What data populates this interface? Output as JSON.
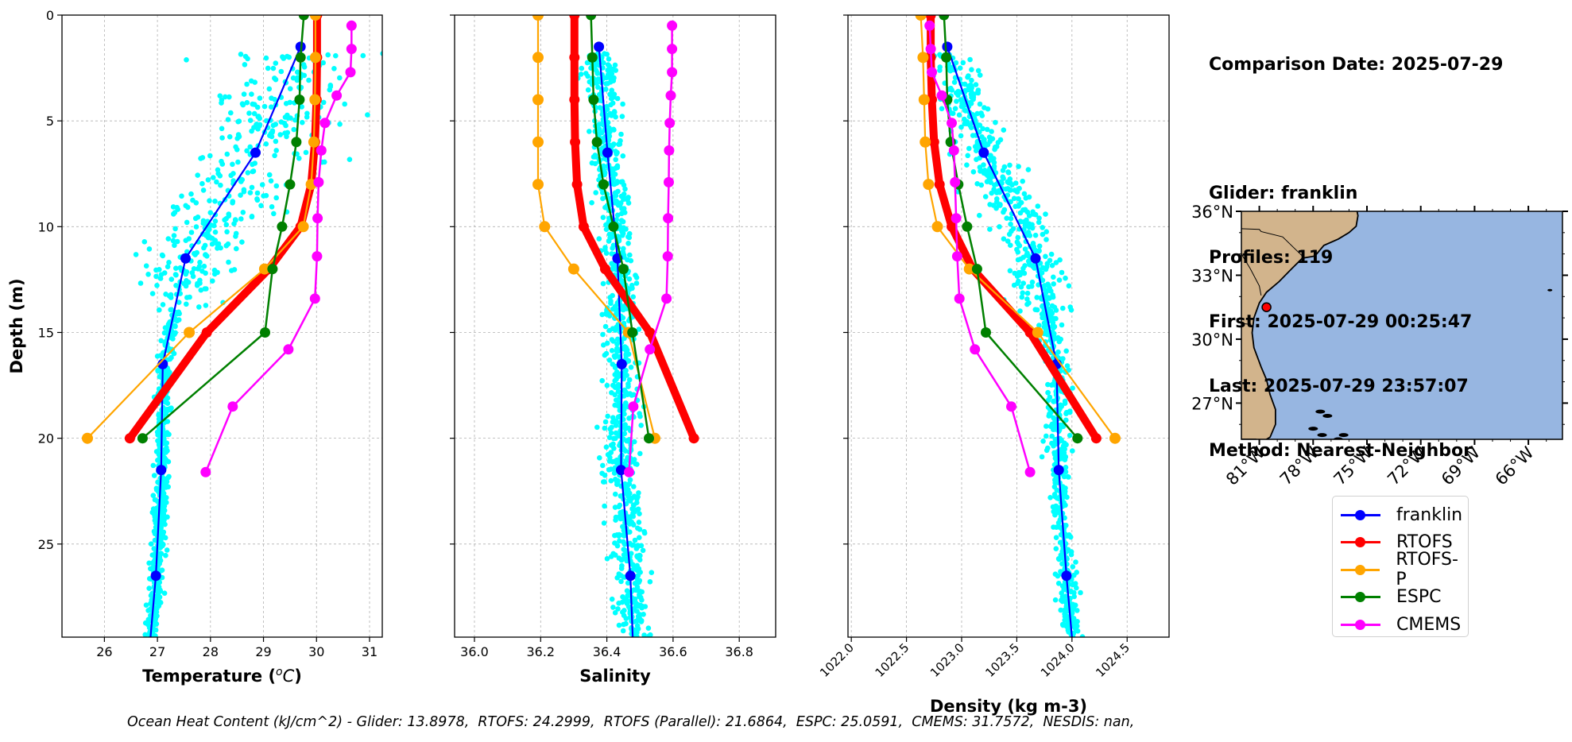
{
  "info": {
    "comparison_date": "Comparison Date: 2025-07-29",
    "glider": "Glider: franklin",
    "profiles": "Profiles: 119",
    "first": "First: 2025-07-29 00:25:47",
    "last": "Last: 2025-07-29 23:57:07",
    "method": "Method: Nearest-Neighbor"
  },
  "footer": {
    "text": "Ocean Heat Content (kJ/cm^2) - Glider: 13.8978,  RTOFS: 24.2999,  RTOFS (Parallel): 21.6864,  ESPC: 25.0591,  CMEMS: 31.7572,  NESDIS: nan,"
  },
  "legend": {
    "placement": "below-map",
    "items": [
      {
        "label": "franklin",
        "color": "#0000ff"
      },
      {
        "label": "RTOFS",
        "color": "#ff0000"
      },
      {
        "label": "RTOFS-P",
        "color": "#ffa500"
      },
      {
        "label": "ESPC",
        "color": "#008000"
      },
      {
        "label": "CMEMS",
        "color": "#ff00ff"
      }
    ]
  },
  "colors": {
    "glider_scatter": "#00ffff",
    "glider": "#0000ff",
    "rtofs": "#ff0000",
    "rtofs_p": "#ffa500",
    "espc": "#008000",
    "cmems": "#ff00ff",
    "land": "#d2b48c",
    "ocean": "#97b6e1",
    "grid": "#b0b0b0"
  },
  "map": {
    "lat_ticks": [
      "36°N",
      "33°N",
      "30°N",
      "27°N"
    ],
    "lat_values": [
      36,
      33,
      30,
      27
    ],
    "lon_ticks": [
      "81°W",
      "78°W",
      "75°W",
      "72°W",
      "69°W",
      "66°W"
    ],
    "lon_values": [
      -81,
      -78,
      -75,
      -72,
      -69,
      -66
    ],
    "lat_range": [
      25.3,
      36
    ],
    "lon_range": [
      -82,
      -64.1
    ],
    "glider_location": {
      "lon": -80.6,
      "lat": 31.5
    }
  },
  "chart_data": [
    {
      "type": "line",
      "title": "",
      "xlabel": "Temperature (",
      "xlabel_sup": "o",
      "xlabel_unit": "C)",
      "ylabel": "Depth (m)",
      "xlim": [
        25.2,
        31.24
      ],
      "ylim": [
        29.4,
        0
      ],
      "x_ticks": [
        26,
        27,
        28,
        29,
        30,
        31
      ],
      "x_tick_labels": [
        "26",
        "27",
        "28",
        "29",
        "30",
        "31"
      ],
      "y_ticks": [
        0,
        5,
        10,
        15,
        20,
        25
      ],
      "y_tick_labels": [
        "0",
        "5",
        "10",
        "15",
        "20",
        "25"
      ],
      "grid": true,
      "series": [
        {
          "name": "franklin",
          "depth": [
            1.5,
            6.5,
            11.5,
            16.5,
            21.5,
            26.5,
            29.4
          ],
          "values": [
            29.7,
            28.85,
            27.53,
            27.1,
            27.07,
            26.97,
            26.87
          ],
          "marker_count": 6
        },
        {
          "name": "RTOFS",
          "depth": [
            0,
            2,
            4,
            6,
            8,
            10,
            12,
            15,
            20
          ],
          "values": [
            30.01,
            30.01,
            30.0,
            29.97,
            29.9,
            29.7,
            29.1,
            27.93,
            26.48
          ]
        },
        {
          "name": "RTOFS-P",
          "depth": [
            0,
            2,
            4,
            6,
            8,
            10,
            12,
            15,
            20
          ],
          "values": [
            29.98,
            29.98,
            29.97,
            29.95,
            29.9,
            29.75,
            29.02,
            27.6,
            25.68
          ]
        },
        {
          "name": "ESPC",
          "depth": [
            0,
            2,
            4,
            6,
            8,
            10,
            12,
            15,
            20
          ],
          "values": [
            29.76,
            29.7,
            29.68,
            29.62,
            29.5,
            29.35,
            29.17,
            29.03,
            26.72
          ]
        },
        {
          "name": "CMEMS",
          "depth": [
            0.5,
            1.6,
            2.7,
            3.8,
            5.1,
            6.4,
            7.9,
            9.6,
            11.4,
            13.4,
            15.8,
            18.5,
            21.6
          ],
          "values": [
            30.66,
            30.66,
            30.64,
            30.38,
            30.16,
            30.09,
            30.04,
            30.02,
            30.01,
            29.97,
            29.47,
            28.42,
            27.91
          ]
        }
      ]
    },
    {
      "type": "line",
      "title": "",
      "xlabel": "Salinity",
      "ylabel": "",
      "xlim": [
        35.94,
        36.91
      ],
      "ylim": [
        29.4,
        0
      ],
      "x_ticks": [
        36.0,
        36.2,
        36.4,
        36.6,
        36.8
      ],
      "x_tick_labels": [
        "36.0",
        "36.2",
        "36.4",
        "36.6",
        "36.8"
      ],
      "y_ticks": [
        0,
        5,
        10,
        15,
        20,
        25
      ],
      "grid": true,
      "series": [
        {
          "name": "franklin",
          "depth": [
            1.5,
            6.5,
            11.5,
            16.5,
            21.5,
            26.5,
            29.4
          ],
          "values": [
            36.376,
            36.402,
            36.432,
            36.445,
            36.443,
            36.471,
            36.478
          ],
          "marker_count": 6
        },
        {
          "name": "RTOFS",
          "depth": [
            0,
            2,
            4,
            6,
            8,
            10,
            12,
            15,
            20
          ],
          "values": [
            36.302,
            36.302,
            36.302,
            36.304,
            36.31,
            36.33,
            36.395,
            36.53,
            36.663
          ]
        },
        {
          "name": "RTOFS-P",
          "depth": [
            0,
            2,
            4,
            6,
            8,
            10,
            12,
            15,
            20
          ],
          "values": [
            36.192,
            36.192,
            36.192,
            36.192,
            36.192,
            36.212,
            36.3,
            36.465,
            36.545
          ]
        },
        {
          "name": "ESPC",
          "depth": [
            0,
            2,
            4,
            6,
            8,
            10,
            12,
            15,
            20
          ],
          "values": [
            36.352,
            36.356,
            36.36,
            36.37,
            36.39,
            36.42,
            36.45,
            36.477,
            36.527
          ]
        },
        {
          "name": "CMEMS",
          "depth": [
            0.5,
            1.6,
            2.7,
            3.8,
            5.1,
            6.4,
            7.9,
            9.6,
            11.4,
            13.4,
            15.8,
            18.5,
            21.6
          ],
          "values": [
            36.597,
            36.597,
            36.597,
            36.593,
            36.59,
            36.588,
            36.587,
            36.585,
            36.584,
            36.58,
            36.53,
            36.48,
            36.467
          ]
        }
      ]
    },
    {
      "type": "line",
      "title": "",
      "xlabel": "Density (kg m-3)",
      "ylabel": "",
      "xlim": [
        1021.97,
        1024.88
      ],
      "ylim": [
        29.4,
        0
      ],
      "x_ticks": [
        1022.0,
        1022.5,
        1023.0,
        1023.5,
        1024.0,
        1024.5
      ],
      "x_tick_labels": [
        "1022.0",
        "1022.5",
        "1023.0",
        "1023.5",
        "1024.0",
        "1024.5"
      ],
      "y_ticks": [
        0,
        5,
        10,
        15,
        20,
        25
      ],
      "grid": true,
      "series": [
        {
          "name": "franklin",
          "depth": [
            1.5,
            6.5,
            11.5,
            16.5,
            21.5,
            26.5,
            29.4
          ],
          "values": [
            1022.87,
            1023.2,
            1023.67,
            1023.86,
            1023.88,
            1023.95,
            1024.0
          ],
          "marker_count": 6
        },
        {
          "name": "RTOFS",
          "depth": [
            0,
            2,
            4,
            6,
            8,
            10,
            12,
            15,
            20
          ],
          "values": [
            1022.72,
            1022.72,
            1022.73,
            1022.75,
            1022.8,
            1022.91,
            1023.1,
            1023.62,
            1024.22
          ]
        },
        {
          "name": "RTOFS-P",
          "depth": [
            0,
            2,
            4,
            6,
            8,
            10,
            12,
            15,
            20
          ],
          "values": [
            1022.63,
            1022.65,
            1022.66,
            1022.67,
            1022.7,
            1022.78,
            1023.07,
            1023.69,
            1024.39
          ]
        },
        {
          "name": "ESPC",
          "depth": [
            0,
            2,
            4,
            6,
            8,
            10,
            12,
            15,
            20
          ],
          "values": [
            1022.84,
            1022.86,
            1022.87,
            1022.9,
            1022.97,
            1023.05,
            1023.14,
            1023.22,
            1024.05
          ]
        },
        {
          "name": "CMEMS",
          "depth": [
            0.5,
            1.6,
            2.7,
            3.8,
            5.1,
            6.4,
            7.9,
            9.6,
            11.4,
            13.4,
            15.8,
            18.5,
            21.6
          ],
          "values": [
            1022.71,
            1022.72,
            1022.73,
            1022.82,
            1022.91,
            1022.93,
            1022.94,
            1022.95,
            1022.96,
            1022.98,
            1023.12,
            1023.45,
            1023.62
          ]
        }
      ]
    }
  ]
}
